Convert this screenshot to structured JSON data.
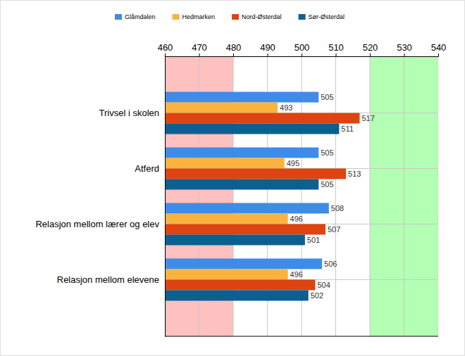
{
  "chart_data": {
    "type": "bar",
    "orientation": "horizontal",
    "categories": [
      "Trivsel i skolen",
      "Atferd",
      "Relasjon mellom lærer og elev",
      "Relasjon mellom elevene"
    ],
    "series": [
      {
        "name": "Glåmdalen",
        "color": "#3f8ce8",
        "values": [
          505,
          505,
          508,
          506
        ]
      },
      {
        "name": "Hedmarken",
        "color": "#fbb33f",
        "values": [
          493,
          495,
          496,
          496
        ]
      },
      {
        "name": "Nord-Østerdal",
        "color": "#dd4411",
        "values": [
          517,
          513,
          507,
          504
        ]
      },
      {
        "name": "Sør-Østerdal",
        "color": "#0b6090",
        "values": [
          511,
          505,
          501,
          502
        ]
      }
    ],
    "xlim": [
      460,
      540
    ],
    "xticks": [
      460,
      470,
      480,
      490,
      500,
      510,
      520,
      530,
      540
    ],
    "bands": [
      {
        "from": 460,
        "to": 480,
        "color": "#ffc0c0"
      },
      {
        "from": 520,
        "to": 540,
        "color": "#b3ffb3"
      }
    ],
    "grid": true,
    "data_labels": true,
    "legend": "top"
  }
}
